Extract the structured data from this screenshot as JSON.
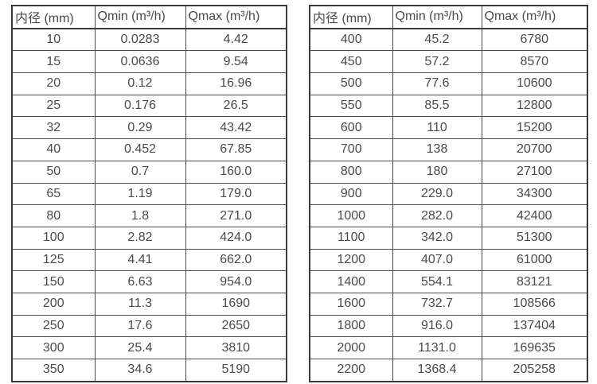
{
  "page": {
    "background": "#ffffff",
    "text_color": "#4a4a4a",
    "border_color": "#3b3b3b"
  },
  "tables": [
    {
      "name": "flow-rate-table-small-diameter",
      "headers": [
        "内径 (mm)",
        "Qmin (m³/h)",
        "Qmax (m³/h)"
      ],
      "rows": [
        [
          "10",
          "0.0283",
          "4.42"
        ],
        [
          "15",
          "0.0636",
          "9.54"
        ],
        [
          "20",
          "0.12",
          "16.96"
        ],
        [
          "25",
          "0.176",
          "26.5"
        ],
        [
          "32",
          "0.29",
          "43.42"
        ],
        [
          "40",
          "0.452",
          "67.85"
        ],
        [
          "50",
          "0.7",
          "160.0"
        ],
        [
          "65",
          "1.19",
          "179.0"
        ],
        [
          "80",
          "1.8",
          "271.0"
        ],
        [
          "100",
          "2.82",
          "424.0"
        ],
        [
          "125",
          "4.41",
          "662.0"
        ],
        [
          "150",
          "6.63",
          "954.0"
        ],
        [
          "200",
          "11.3",
          "1690"
        ],
        [
          "250",
          "17.6",
          "2650"
        ],
        [
          "300",
          "25.4",
          "3810"
        ],
        [
          "350",
          "34.6",
          "5190"
        ]
      ]
    },
    {
      "name": "flow-rate-table-large-diameter",
      "headers": [
        "内径 (mm)",
        "Qmin (m³/h)",
        "Qmax (m³/h)"
      ],
      "rows": [
        [
          "400",
          "45.2",
          "6780"
        ],
        [
          "450",
          "57.2",
          "8570"
        ],
        [
          "500",
          "77.6",
          "10600"
        ],
        [
          "550",
          "85.5",
          "12800"
        ],
        [
          "600",
          "110",
          "15200"
        ],
        [
          "700",
          "138",
          "20700"
        ],
        [
          "800",
          "180",
          "27100"
        ],
        [
          "900",
          "229.0",
          "34300"
        ],
        [
          "1000",
          "282.0",
          "42400"
        ],
        [
          "1100",
          "342.0",
          "51300"
        ],
        [
          "1200",
          "407.0",
          "61000"
        ],
        [
          "1400",
          "554.1",
          "83121"
        ],
        [
          "1600",
          "732.7",
          "108566"
        ],
        [
          "1800",
          "916.0",
          "137404"
        ],
        [
          "2000",
          "1131.0",
          "169635"
        ],
        [
          "2200",
          "1368.4",
          "205258"
        ]
      ]
    }
  ]
}
